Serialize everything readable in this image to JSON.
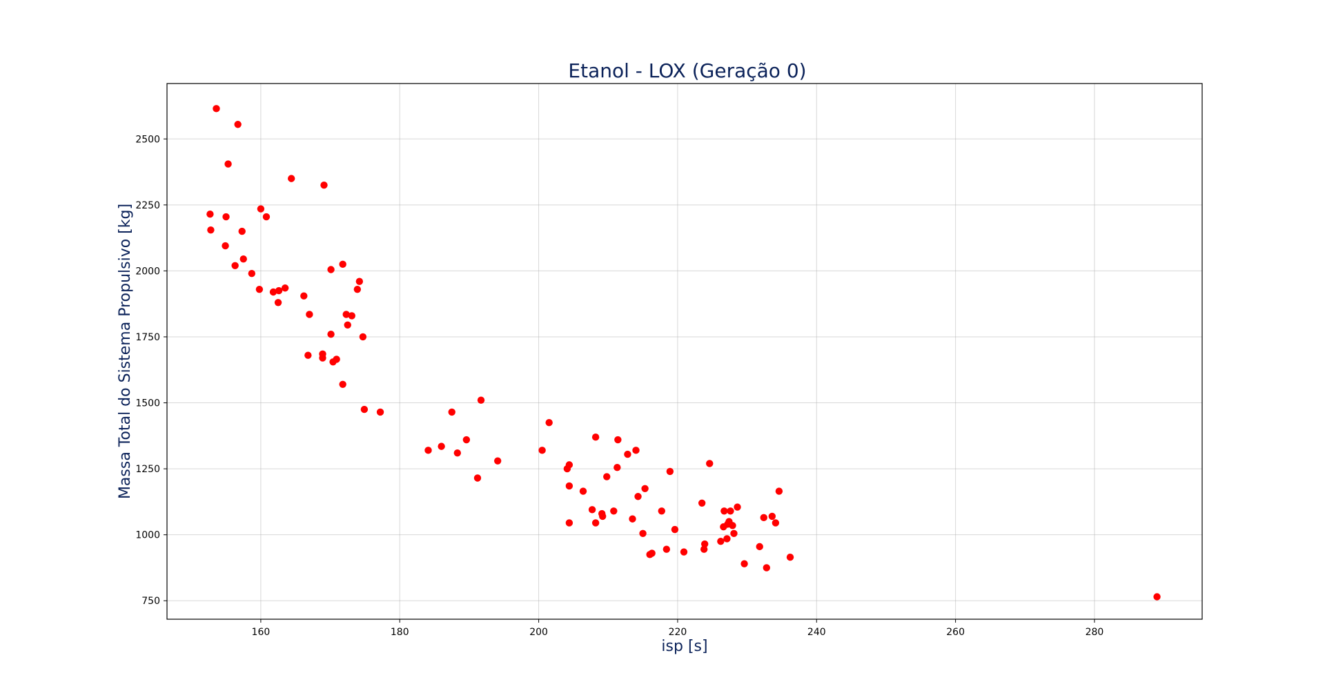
{
  "chart_data": {
    "type": "scatter",
    "title": "Etanol - LOX (Geração 0)",
    "xlabel": "isp [s]",
    "ylabel": "Massa Total do Sistema Propulsivo [kg]",
    "xlim": [
      146.5,
      295.5
    ],
    "ylim": [
      680,
      2710
    ],
    "x_ticks": [
      160,
      180,
      200,
      220,
      240,
      260,
      280
    ],
    "y_ticks": [
      750,
      1000,
      1250,
      1500,
      1750,
      2000,
      2250,
      2500
    ],
    "x_tick_labels": [
      "160",
      "180",
      "200",
      "220",
      "240",
      "260",
      "280"
    ],
    "y_tick_labels": [
      "750",
      "1000",
      "1250",
      "1500",
      "1750",
      "2000",
      "2250",
      "2500"
    ],
    "grid": true,
    "marker_color": "#ff0000",
    "series": [
      {
        "x": [
          153.6,
          156.7,
          155.3,
          164.4,
          169.1,
          152.7,
          160.0,
          160.8,
          155.0,
          152.8,
          157.3,
          154.9,
          157.5,
          156.3,
          158.7,
          159.8,
          161.8,
          162.6,
          163.5,
          162.5,
          166.2,
          167.0,
          170.1,
          171.8,
          174.2,
          173.9,
          172.3,
          173.1,
          172.5,
          174.7,
          170.1,
          166.8,
          168.9,
          168.9,
          170.9,
          170.4,
          171.8,
          174.9,
          177.2,
          191.7,
          187.5,
          184.1,
          186.0,
          189.6,
          188.3,
          194.1,
          191.2,
          201.5,
          200.5,
          208.2,
          211.4,
          214.0,
          212.8,
          204.4,
          204.1,
          211.3,
          209.8,
          224.6,
          218.9,
          204.4,
          206.4,
          215.3,
          214.3,
          207.7,
          209.1,
          209.2,
          210.8,
          208.2,
          204.4,
          213.5,
          217.7,
          223.5,
          226.7,
          227.6,
          228.6,
          234.6,
          233.6,
          232.4,
          234.1,
          227.4,
          227.9,
          226.6,
          227.2,
          228.1,
          227.1,
          226.2,
          223.9,
          219.6,
          215.0,
          223.8,
          218.4,
          216.3,
          216.0,
          220.9,
          231.8,
          229.6,
          236.2,
          232.8,
          289.0
        ],
        "y": [
          2615,
          2555,
          2405,
          2350,
          2325,
          2215,
          2235,
          2205,
          2205,
          2155,
          2150,
          2095,
          2045,
          2020,
          1990,
          1930,
          1920,
          1925,
          1935,
          1880,
          1905,
          1835,
          2005,
          2025,
          1960,
          1930,
          1835,
          1830,
          1795,
          1750,
          1760,
          1680,
          1685,
          1670,
          1665,
          1655,
          1570,
          1475,
          1465,
          1510,
          1465,
          1320,
          1335,
          1360,
          1310,
          1280,
          1215,
          1425,
          1320,
          1370,
          1360,
          1320,
          1305,
          1265,
          1250,
          1255,
          1220,
          1270,
          1240,
          1185,
          1165,
          1175,
          1145,
          1095,
          1080,
          1070,
          1090,
          1045,
          1045,
          1060,
          1090,
          1120,
          1090,
          1090,
          1105,
          1165,
          1070,
          1065,
          1045,
          1050,
          1035,
          1030,
          1040,
          1005,
          985,
          975,
          965,
          1020,
          1005,
          945,
          945,
          930,
          925,
          935,
          955,
          890,
          915,
          875,
          765
        ]
      }
    ]
  }
}
